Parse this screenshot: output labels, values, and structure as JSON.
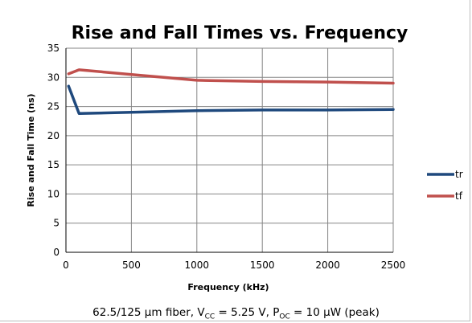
{
  "chart_data": {
    "type": "line",
    "title": "Rise and Fall Times vs. Frequency",
    "xlabel": "Frequency (kHz)",
    "ylabel": "Rise and Fall Time (ns)",
    "xlim": [
      0,
      2500
    ],
    "ylim": [
      0,
      35
    ],
    "xticks": [
      0,
      500,
      1000,
      1500,
      2000,
      2500
    ],
    "yticks": [
      0,
      5,
      10,
      15,
      20,
      25,
      30,
      35
    ],
    "grid": "horizontal and vertical",
    "legend_position": "right",
    "series": [
      {
        "name": "tr",
        "color": "#1f497d",
        "x": [
          20,
          100,
          500,
          1000,
          1500,
          2000,
          2500
        ],
        "y": [
          28.5,
          23.8,
          24.0,
          24.3,
          24.4,
          24.4,
          24.5
        ]
      },
      {
        "name": "tf",
        "color": "#c0504d",
        "x": [
          20,
          100,
          500,
          1000,
          1500,
          2000,
          2500
        ],
        "y": [
          30.6,
          31.3,
          30.5,
          29.5,
          29.3,
          29.2,
          29.0
        ]
      }
    ]
  },
  "caption": {
    "part1": "62.5/125 µm fiber, V",
    "sub1": "CC",
    "part2": " = 5.25 V, P",
    "sub2": "OC",
    "part3": " = 10 µW (peak)"
  }
}
